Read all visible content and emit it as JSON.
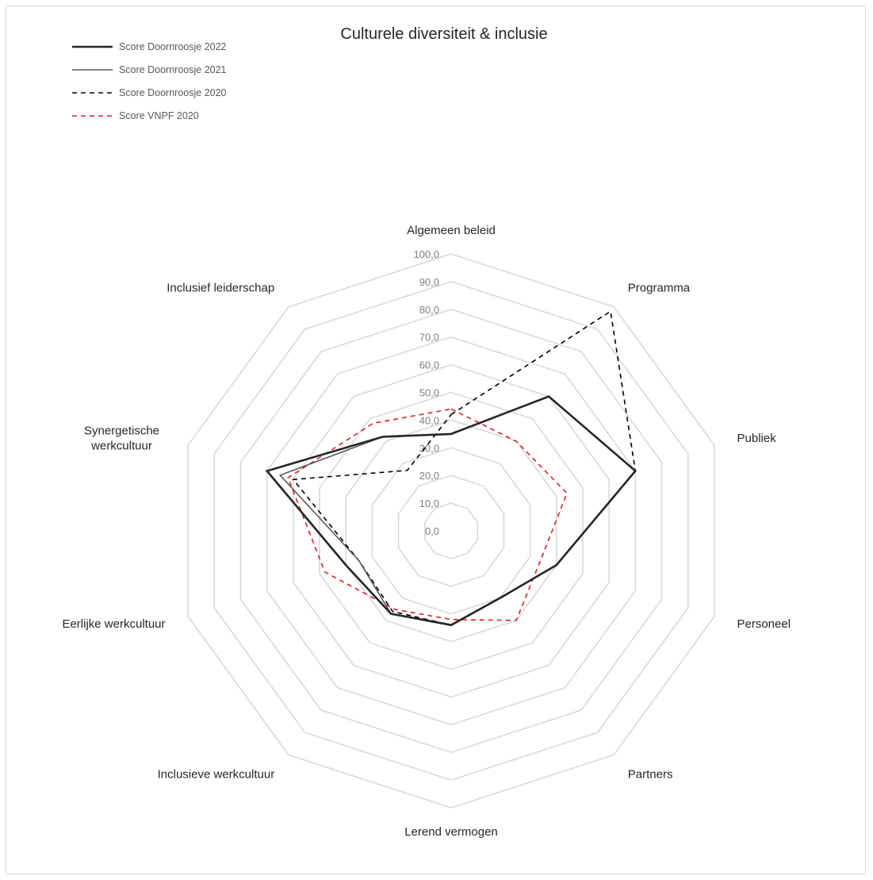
{
  "chart_data": {
    "type": "radar",
    "title": "Culturele diversiteit & inclusie",
    "categories": [
      "Algemeen beleid",
      "Programma",
      "Publiek",
      "Personeel",
      "Partners",
      "Lerend vermogen",
      "Inclusieve werkcultuur",
      "Eerlijke werkcultuur",
      "Synergetische werkcultuur",
      "Inclusief leiderschap"
    ],
    "category_lines": [
      [
        "Algemeen beleid"
      ],
      [
        "Programma"
      ],
      [
        "Publiek"
      ],
      [
        "Personeel"
      ],
      [
        "Partners"
      ],
      [
        "Lerend vermogen"
      ],
      [
        "Inclusieve werkcultuur"
      ],
      [
        "Eerlijke werkcultuur"
      ],
      [
        "Synergetische",
        "werkcultuur"
      ],
      [
        "Inclusief leiderschap"
      ]
    ],
    "rlim": [
      0,
      100
    ],
    "ticks": [
      "0,0",
      "10,0",
      "20,0",
      "30,0",
      "40,0",
      "50,0",
      "60,0",
      "70,0",
      "80,0",
      "90,0",
      "100,0"
    ],
    "grid": true,
    "legend_position": "top-left",
    "series": [
      {
        "name": "Score Doornroosje 2022",
        "values": [
          35,
          60,
          70,
          40,
          30,
          34,
          37,
          40,
          70,
          42
        ],
        "color": "#262626",
        "style": "solid-bold"
      },
      {
        "name": "Score Doornroosje 2021",
        "values": [
          35,
          60,
          70,
          40,
          30,
          34,
          37,
          35,
          65,
          42
        ],
        "color": "#595959",
        "style": "solid"
      },
      {
        "name": "Score Doornroosje 2020",
        "values": [
          42,
          98,
          70,
          40,
          30,
          34,
          36,
          35,
          60,
          27
        ],
        "color": "#000000",
        "style": "dashed"
      },
      {
        "name": "Score VNPF 2020",
        "values": [
          44,
          40,
          44,
          34,
          40,
          32,
          35,
          48,
          62,
          48
        ],
        "color": "#e02020",
        "style": "dashed"
      }
    ]
  }
}
